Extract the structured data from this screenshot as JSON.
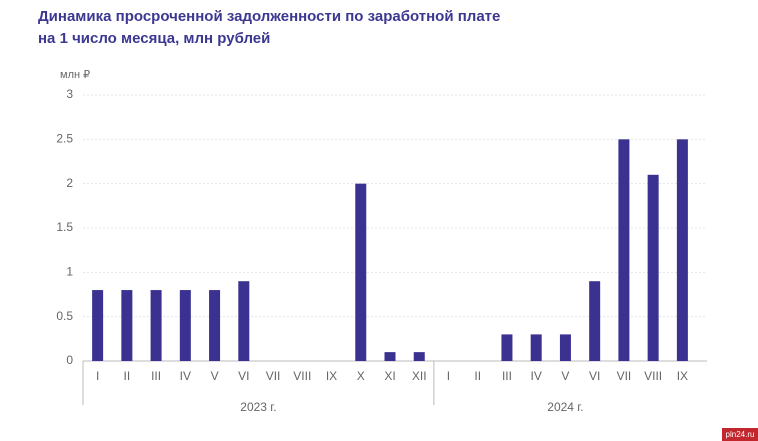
{
  "chart_data": {
    "type": "bar",
    "title": [
      "Динамика просроченной задолженности по заработной плате",
      "на 1 число месяца, млн рублей"
    ],
    "y_label": "млн ₽",
    "color": "#3a3190",
    "ylim": [
      0,
      3
    ],
    "yticks": [
      0,
      0.5,
      1,
      1.5,
      2,
      2.5,
      3
    ],
    "grid": true,
    "groups": [
      {
        "name": "2023 г.",
        "categories": [
          "I",
          "II",
          "III",
          "IV",
          "V",
          "VI",
          "VII",
          "VIII",
          "IX",
          "X",
          "XI",
          "XII"
        ],
        "values": [
          0.8,
          0.8,
          0.8,
          0.8,
          0.8,
          0.9,
          0,
          0,
          0,
          2,
          0.1,
          0.1
        ]
      },
      {
        "name": "2024 г.",
        "categories": [
          "I",
          "II",
          "III",
          "IV",
          "V",
          "VI",
          "VII",
          "VIII",
          "IX"
        ],
        "values": [
          0,
          0,
          0.3,
          0.3,
          0.3,
          0.9,
          2.5,
          2.1,
          2.5
        ]
      }
    ]
  },
  "watermark": "pln24.ru"
}
